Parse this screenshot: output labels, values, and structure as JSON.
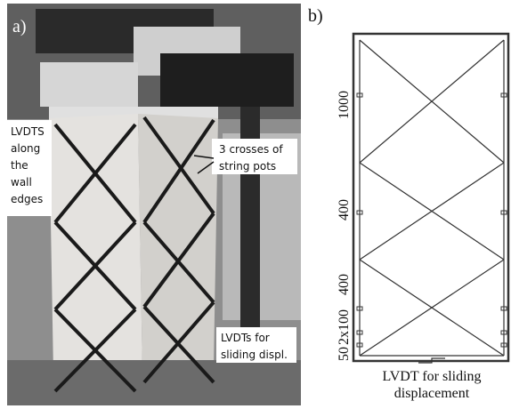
{
  "panel_a": {
    "label": "a)",
    "annotations": [
      {
        "lines": [
          "LVDTS",
          "along",
          "the",
          "wall",
          "edges"
        ]
      },
      {
        "lines": [
          "3 crosses of",
          "string pots"
        ]
      },
      {
        "lines": [
          "LVDTs for",
          "sliding displ."
        ]
      }
    ]
  },
  "panel_b": {
    "label": "b)",
    "dimensions": [
      "1000",
      "400",
      "400",
      "2x100",
      "50"
    ],
    "caption": [
      "LVDT for sliding",
      "displacement"
    ]
  }
}
